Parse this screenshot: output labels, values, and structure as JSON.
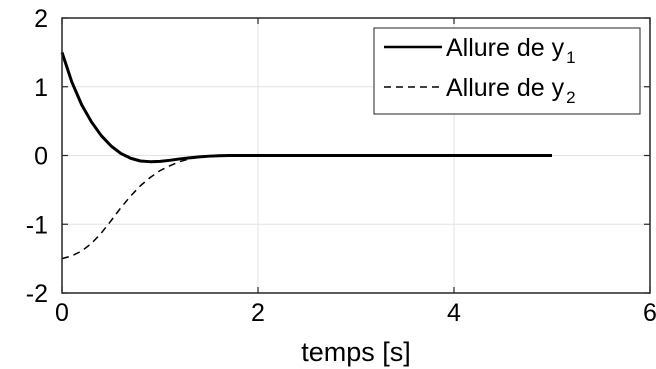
{
  "chart_data": {
    "type": "line",
    "title": "",
    "xlabel": "temps [s]",
    "ylabel": "",
    "xlim": [
      0,
      6
    ],
    "ylim": [
      -2,
      2
    ],
    "x_ticks": [
      "0",
      "2",
      "4",
      "6"
    ],
    "y_ticks": [
      "2",
      "1",
      "0",
      "-1",
      "-2"
    ],
    "grid": true,
    "legend_position": "top-right",
    "series": [
      {
        "name": "Allure de y1",
        "legend_main": "Allure de y",
        "legend_sub": "1",
        "line_style": "solid",
        "color": "#000000",
        "points": [
          [
            0,
            1.5
          ],
          [
            0.1,
            1.07
          ],
          [
            0.2,
            0.74
          ],
          [
            0.3,
            0.49
          ],
          [
            0.4,
            0.29
          ],
          [
            0.5,
            0.14
          ],
          [
            0.6,
            0.03
          ],
          [
            0.7,
            -0.04
          ],
          [
            0.8,
            -0.08
          ],
          [
            0.9,
            -0.09
          ],
          [
            1.0,
            -0.085
          ],
          [
            1.1,
            -0.07
          ],
          [
            1.2,
            -0.05
          ],
          [
            1.3,
            -0.035
          ],
          [
            1.4,
            -0.02
          ],
          [
            1.5,
            -0.01
          ],
          [
            1.6,
            -0.003
          ],
          [
            1.7,
            0.0
          ],
          [
            2.0,
            0.0
          ],
          [
            3.0,
            0.0
          ],
          [
            4.0,
            0.0
          ],
          [
            5.0,
            0.0
          ]
        ]
      },
      {
        "name": "Allure de y2",
        "legend_main": "Allure de y",
        "legend_sub": "2",
        "line_style": "dashed",
        "color": "#000000",
        "points": [
          [
            0,
            -1.5
          ],
          [
            0.1,
            -1.46
          ],
          [
            0.2,
            -1.39
          ],
          [
            0.3,
            -1.28
          ],
          [
            0.4,
            -1.13
          ],
          [
            0.5,
            -0.95
          ],
          [
            0.6,
            -0.76
          ],
          [
            0.7,
            -0.59
          ],
          [
            0.8,
            -0.44
          ],
          [
            0.9,
            -0.32
          ],
          [
            1.0,
            -0.22
          ],
          [
            1.1,
            -0.15
          ],
          [
            1.2,
            -0.09
          ],
          [
            1.3,
            -0.05
          ],
          [
            1.4,
            -0.025
          ],
          [
            1.5,
            -0.01
          ],
          [
            1.6,
            -0.003
          ],
          [
            1.7,
            0.0
          ]
        ]
      }
    ]
  }
}
